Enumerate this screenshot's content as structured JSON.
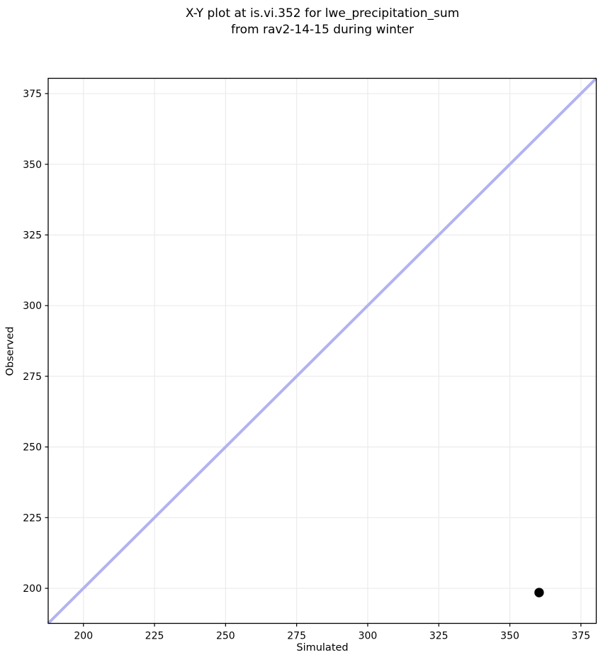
{
  "figure": {
    "title_line1": "X-Y plot at is.vi.352 for lwe_precipitation_sum",
    "title_line2": "from rav2-14-15 during winter",
    "xlabel": "Simulated",
    "ylabel": "Observed"
  },
  "chart_data": {
    "type": "scatter",
    "title": "X-Y plot at is.vi.352 for lwe_precipitation_sum\nfrom rav2-14-15 during winter",
    "xlabel": "Simulated",
    "ylabel": "Observed",
    "xlim": [
      187.6,
      380.4
    ],
    "ylim": [
      187.6,
      380.4
    ],
    "xticks": [
      200,
      225,
      250,
      275,
      300,
      325,
      350,
      375
    ],
    "yticks": [
      200,
      225,
      250,
      275,
      300,
      325,
      350,
      375
    ],
    "grid": true,
    "grid_color": "#ebebeb",
    "spine_color": "#000000",
    "background_color": "#ffffff",
    "legend": null,
    "series": [
      {
        "name": "identity-line",
        "kind": "line",
        "color": "#b2b2f2",
        "line_width": 4,
        "points": [
          {
            "x": 187.6,
            "y": 187.6
          },
          {
            "x": 380.4,
            "y": 380.4
          }
        ]
      },
      {
        "name": "observations",
        "kind": "scatter",
        "color": "#000000",
        "marker": "circle",
        "marker_radius": 6.7,
        "points": [
          {
            "x": 360.3,
            "y": 198.5
          }
        ]
      }
    ]
  }
}
